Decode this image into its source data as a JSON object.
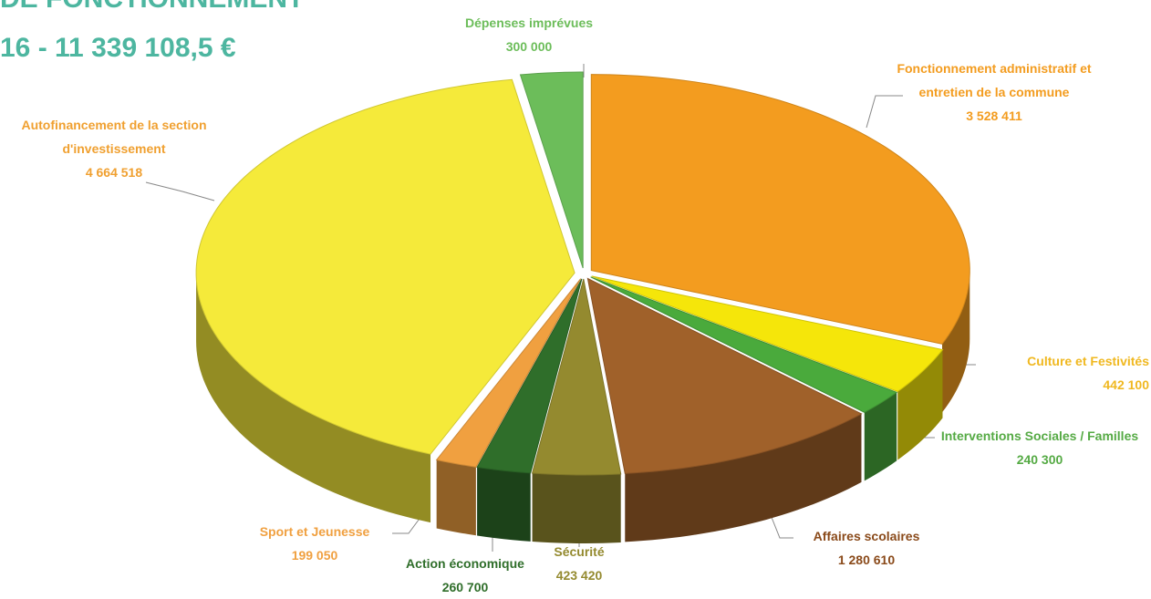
{
  "chart_data": {
    "type": "pie",
    "title": "DE FONCTIONNEMENT",
    "subtitle": "16 - 11 339 108,5 €",
    "categories": [
      "Fonctionnement administratif et entretien de la commune",
      "Culture et Festivités",
      "Interventions Sociales / Familles",
      "Affaires scolaires",
      "Sécurité",
      "Action économique",
      "Sport et Jeunesse",
      "Autofinancement de la section d'investissement",
      "Dépenses imprévues"
    ],
    "values": [
      3528411,
      442100,
      240300,
      1280610,
      423420,
      260700,
      199050,
      4664518,
      300000
    ],
    "value_labels": [
      "3 528 411",
      "442 100",
      "240 300",
      "1 280 610",
      "423 420",
      "260 700",
      "199 050",
      "4 664 518",
      "300 000"
    ],
    "colors": [
      "#f39c1f",
      "#f5e60a",
      "#4aaa3c",
      "#a0612a",
      "#948a2f",
      "#2f6e2a",
      "#f0a040",
      "#f5ea3a",
      "#6cbd5a"
    ]
  }
}
